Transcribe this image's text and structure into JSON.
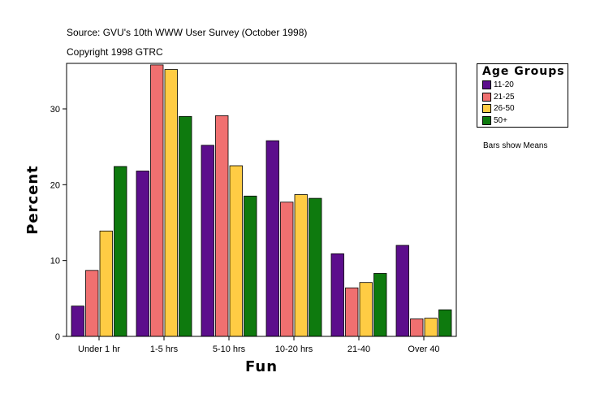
{
  "header": {
    "source": "Source: GVU's 10th WWW User Survey (October 1998)",
    "copyright": "Copyright 1998 GTRC"
  },
  "note": "Bars show Means",
  "chart_data": {
    "type": "bar",
    "xlabel": "Fun",
    "ylabel": "Percent",
    "categories": [
      "Under 1 hr",
      "1-5 hrs",
      "5-10 hrs",
      "10-20 hrs",
      "21-40",
      "Over 40"
    ],
    "ylim": [
      0,
      36
    ],
    "yticks": [
      0,
      10,
      20,
      30
    ],
    "grid": false,
    "legend": {
      "title": "Age Groups",
      "position": "right"
    },
    "series": [
      {
        "name": "11-20",
        "color": "#5c0e8c",
        "values": [
          4.0,
          21.8,
          25.2,
          25.8,
          10.9,
          12.0
        ]
      },
      {
        "name": "21-25",
        "color": "#f07070",
        "values": [
          8.7,
          35.8,
          29.1,
          17.7,
          6.4,
          2.3
        ]
      },
      {
        "name": "26-50",
        "color": "#ffcc44",
        "values": [
          13.9,
          35.2,
          22.5,
          18.7,
          7.1,
          2.4
        ]
      },
      {
        "name": "50+",
        "color": "#0e7a0e",
        "values": [
          22.4,
          29.0,
          18.5,
          18.2,
          8.3,
          3.5
        ]
      }
    ]
  }
}
